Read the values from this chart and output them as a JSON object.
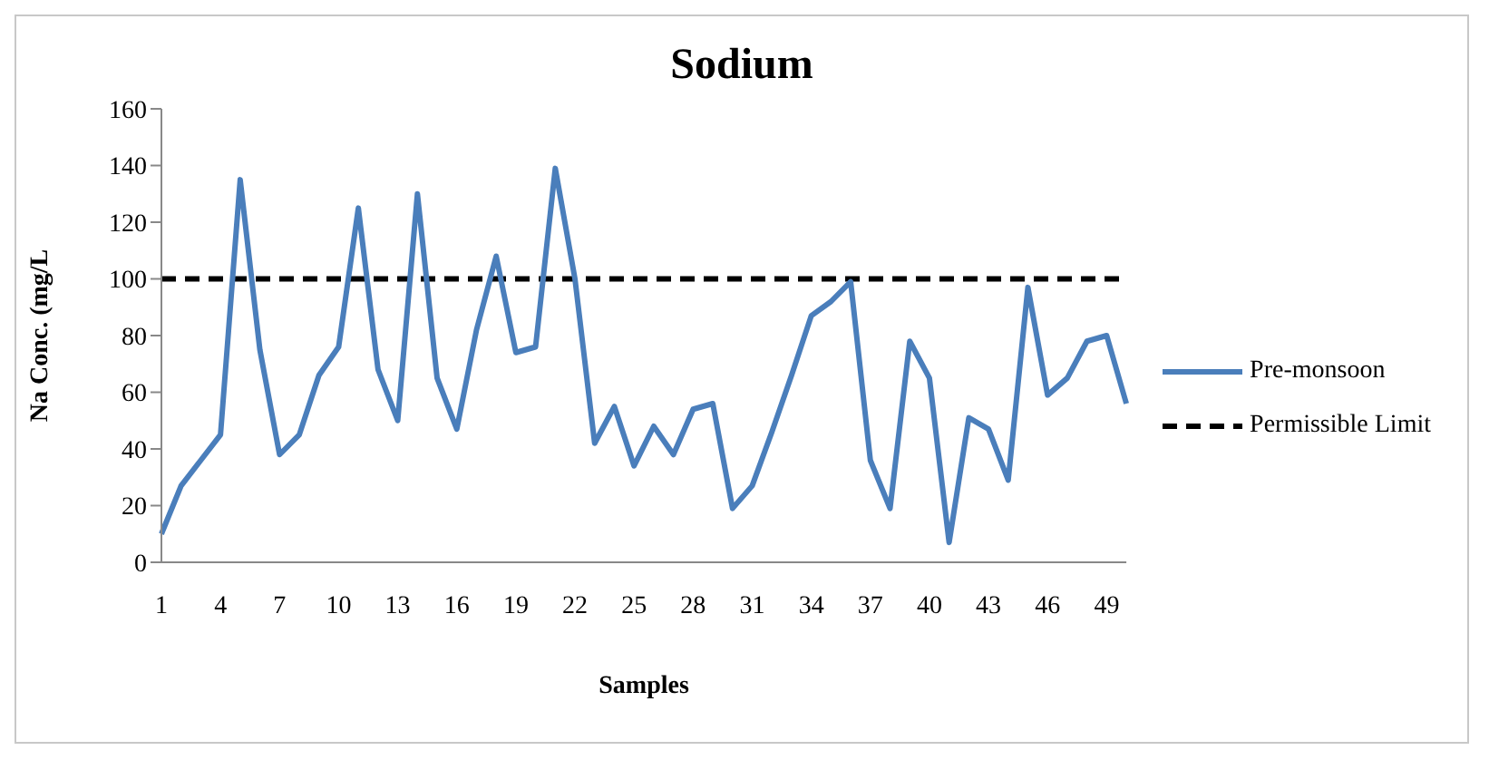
{
  "chart_data": {
    "type": "line",
    "title": "Sodium",
    "xlabel": "Samples",
    "ylabel": "Na Conc. (mg/L",
    "categories": [
      "1",
      null,
      null,
      "4",
      null,
      null,
      "7",
      null,
      null,
      "10",
      null,
      null,
      "13",
      null,
      null,
      "16",
      null,
      null,
      "19",
      null,
      null,
      "22",
      null,
      null,
      "25",
      null,
      null,
      "28",
      null,
      null,
      "31",
      null,
      null,
      "34",
      null,
      null,
      "37",
      null,
      null,
      "40",
      null,
      null,
      "43",
      null,
      null,
      "46",
      null,
      null,
      "49",
      null
    ],
    "series": [
      {
        "name": "Pre-monsoon",
        "color": "#4a7ebb",
        "values": [
          10,
          27,
          36,
          45,
          135,
          75,
          38,
          45,
          66,
          76,
          125,
          68,
          50,
          130,
          65,
          47,
          82,
          108,
          74,
          76,
          139,
          100,
          42,
          55,
          34,
          48,
          38,
          54,
          56,
          19,
          27,
          46,
          66,
          87,
          92,
          99,
          36,
          19,
          78,
          65,
          7,
          51,
          47,
          29,
          97,
          59,
          65,
          78,
          80,
          56
        ]
      }
    ],
    "ref_lines": [
      {
        "axis": "y",
        "value": 100,
        "label": "Permissible Limit",
        "color": "#000000",
        "line_style": "dashed"
      }
    ],
    "ylim": [
      0,
      160
    ],
    "yticks": [
      0,
      20,
      40,
      60,
      80,
      100,
      120,
      140,
      160
    ],
    "grid": false,
    "legend": "right",
    "marker": "none",
    "line_style": "solid"
  }
}
